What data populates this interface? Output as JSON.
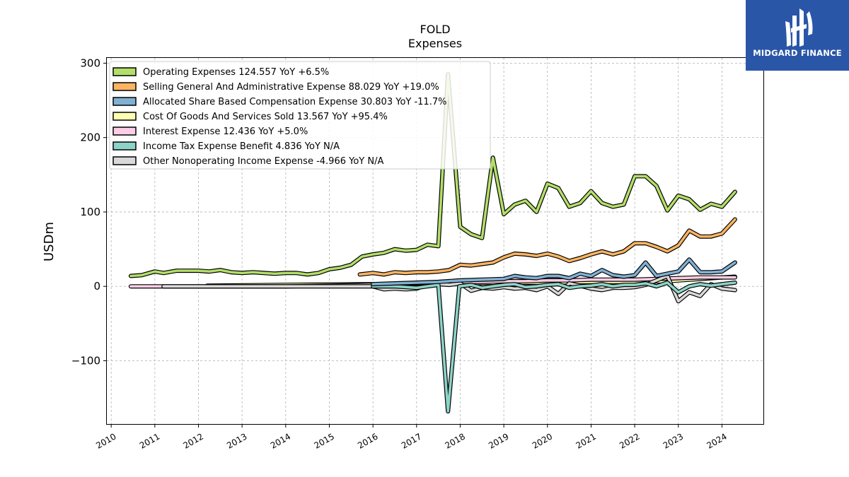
{
  "brand": {
    "name": "MIDGARD FINANCE",
    "logo_icon": "midgard-finance-logo-icon",
    "color": "#2a56a8"
  },
  "chart_data": {
    "type": "line",
    "title": "FOLD",
    "subtitle": "Expenses",
    "xlabel": "",
    "ylabel": "USDm",
    "xlim": [
      2009.9,
      2024.95
    ],
    "ylim": [
      -185,
      307
    ],
    "yticks": [
      -100,
      0,
      100,
      200,
      300
    ],
    "ytick_labels": [
      "−100",
      "0",
      "100",
      "200",
      "300"
    ],
    "xticks": [
      2010,
      2011,
      2012,
      2013,
      2014,
      2015,
      2016,
      2017,
      2018,
      2019,
      2020,
      2021,
      2022,
      2023,
      2024
    ],
    "xtick_labels": [
      "2010",
      "2011",
      "2012",
      "2013",
      "2014",
      "2015",
      "2016",
      "2017",
      "2018",
      "2019",
      "2020",
      "2021",
      "2022",
      "2023",
      "2024"
    ],
    "grid": true,
    "legend_position": "top-left",
    "series": [
      {
        "name": "Operating Expenses",
        "legend": "Operating Expenses  124.557 YoY +6.5%",
        "color": "#b3de69",
        "points": [
          [
            2010.45,
            14
          ],
          [
            2010.7,
            15
          ],
          [
            2011.0,
            20
          ],
          [
            2011.2,
            18
          ],
          [
            2011.5,
            21
          ],
          [
            2011.75,
            21
          ],
          [
            2012.0,
            21
          ],
          [
            2012.25,
            20
          ],
          [
            2012.5,
            22
          ],
          [
            2012.75,
            19
          ],
          [
            2013.0,
            18
          ],
          [
            2013.25,
            19
          ],
          [
            2013.5,
            18
          ],
          [
            2013.75,
            17
          ],
          [
            2014.0,
            18
          ],
          [
            2014.25,
            18
          ],
          [
            2014.5,
            16
          ],
          [
            2014.75,
            18
          ],
          [
            2015.0,
            23
          ],
          [
            2015.25,
            25
          ],
          [
            2015.5,
            29
          ],
          [
            2015.75,
            40
          ],
          [
            2016.0,
            43
          ],
          [
            2016.25,
            45
          ],
          [
            2016.5,
            50
          ],
          [
            2016.75,
            48
          ],
          [
            2017.0,
            49
          ],
          [
            2017.25,
            56
          ],
          [
            2017.5,
            54
          ],
          [
            2017.72,
            285
          ],
          [
            2018.0,
            80
          ],
          [
            2018.25,
            70
          ],
          [
            2018.5,
            65
          ],
          [
            2018.75,
            173
          ],
          [
            2019.0,
            97
          ],
          [
            2019.25,
            110
          ],
          [
            2019.5,
            115
          ],
          [
            2019.75,
            100
          ],
          [
            2020.0,
            138
          ],
          [
            2020.25,
            132
          ],
          [
            2020.5,
            107
          ],
          [
            2020.75,
            112
          ],
          [
            2021.0,
            128
          ],
          [
            2021.25,
            112
          ],
          [
            2021.5,
            107
          ],
          [
            2021.75,
            110
          ],
          [
            2022.0,
            148
          ],
          [
            2022.25,
            148
          ],
          [
            2022.5,
            135
          ],
          [
            2022.75,
            102
          ],
          [
            2023.0,
            122
          ],
          [
            2023.25,
            117
          ],
          [
            2023.5,
            103
          ],
          [
            2023.75,
            111
          ],
          [
            2024.0,
            107
          ],
          [
            2024.3,
            127
          ]
        ]
      },
      {
        "name": "Selling General And Administrative Expense",
        "legend": "Selling General And Administrative Expense  88.029 YoY +19.0%",
        "color": "#fdb462",
        "points": [
          [
            2015.7,
            16
          ],
          [
            2016.0,
            18
          ],
          [
            2016.25,
            16
          ],
          [
            2016.5,
            19
          ],
          [
            2016.75,
            18
          ],
          [
            2017.0,
            19
          ],
          [
            2017.25,
            19
          ],
          [
            2017.5,
            20
          ],
          [
            2017.75,
            22
          ],
          [
            2018.0,
            29
          ],
          [
            2018.25,
            28
          ],
          [
            2018.5,
            30
          ],
          [
            2018.75,
            32
          ],
          [
            2019.0,
            39
          ],
          [
            2019.25,
            44
          ],
          [
            2019.5,
            43
          ],
          [
            2019.75,
            41
          ],
          [
            2020.0,
            44
          ],
          [
            2020.25,
            40
          ],
          [
            2020.5,
            34
          ],
          [
            2020.75,
            38
          ],
          [
            2021.0,
            43
          ],
          [
            2021.25,
            47
          ],
          [
            2021.5,
            43
          ],
          [
            2021.75,
            47
          ],
          [
            2022.0,
            58
          ],
          [
            2022.25,
            58
          ],
          [
            2022.5,
            53
          ],
          [
            2022.75,
            47
          ],
          [
            2023.0,
            55
          ],
          [
            2023.25,
            75
          ],
          [
            2023.5,
            67
          ],
          [
            2023.75,
            67
          ],
          [
            2024.0,
            71
          ],
          [
            2024.3,
            90
          ]
        ]
      },
      {
        "name": "Allocated Share Based Compensation Expense",
        "legend": "Allocated Share Based Compensation Expense  30.803 YoY -11.7%",
        "color": "#80b1d3",
        "points": [
          [
            2016.0,
            3
          ],
          [
            2016.5,
            4
          ],
          [
            2017.0,
            5
          ],
          [
            2017.5,
            6
          ],
          [
            2018.0,
            8
          ],
          [
            2018.5,
            9
          ],
          [
            2019.0,
            10
          ],
          [
            2019.25,
            14
          ],
          [
            2019.5,
            12
          ],
          [
            2019.75,
            11
          ],
          [
            2020.0,
            14
          ],
          [
            2020.25,
            14
          ],
          [
            2020.5,
            11
          ],
          [
            2020.75,
            17
          ],
          [
            2021.0,
            14
          ],
          [
            2021.25,
            22
          ],
          [
            2021.5,
            15
          ],
          [
            2021.75,
            13
          ],
          [
            2022.0,
            15
          ],
          [
            2022.25,
            32
          ],
          [
            2022.5,
            14
          ],
          [
            2022.75,
            17
          ],
          [
            2023.0,
            20
          ],
          [
            2023.25,
            36
          ],
          [
            2023.5,
            19
          ],
          [
            2023.75,
            19
          ],
          [
            2024.0,
            20
          ],
          [
            2024.3,
            32
          ]
        ]
      },
      {
        "name": "Cost Of Goods And Services Sold",
        "legend": "Cost Of Goods And Services Sold  13.567 YoY +95.4%",
        "color": "#ffffb3",
        "points": [
          [
            2012.2,
            1
          ],
          [
            2014.0,
            2
          ],
          [
            2016.0,
            3
          ],
          [
            2018.0,
            4
          ],
          [
            2019.0,
            5
          ],
          [
            2020.0,
            5
          ],
          [
            2021.0,
            6
          ],
          [
            2022.0,
            6
          ],
          [
            2022.75,
            7
          ],
          [
            2023.0,
            8
          ],
          [
            2023.5,
            10
          ],
          [
            2024.0,
            12
          ],
          [
            2024.3,
            13
          ]
        ]
      },
      {
        "name": "Interest Expense",
        "legend": "Interest Expense  12.436 YoY +5.0%",
        "color": "#fccde5",
        "points": [
          [
            2010.45,
            0
          ],
          [
            2011.2,
            0
          ],
          [
            2012.0,
            0
          ],
          [
            2013.0,
            0
          ],
          [
            2014.0,
            0
          ],
          [
            2015.0,
            1
          ],
          [
            2016.0,
            2
          ],
          [
            2016.5,
            3
          ],
          [
            2017.0,
            4
          ],
          [
            2017.5,
            5
          ],
          [
            2018.0,
            6
          ],
          [
            2018.5,
            6
          ],
          [
            2019.0,
            7
          ],
          [
            2019.5,
            7
          ],
          [
            2020.0,
            8
          ],
          [
            2020.5,
            8
          ],
          [
            2021.0,
            9
          ],
          [
            2021.5,
            9
          ],
          [
            2022.0,
            9
          ],
          [
            2022.5,
            10
          ],
          [
            2023.0,
            11
          ],
          [
            2023.5,
            12
          ],
          [
            2024.0,
            12
          ],
          [
            2024.3,
            12
          ]
        ]
      },
      {
        "name": "Income Tax Expense Benefit",
        "legend": "Income Tax Expense Benefit  4.836 YoY N/A",
        "color": "#8dd3c7",
        "points": [
          [
            2016.0,
            0
          ],
          [
            2016.5,
            0
          ],
          [
            2017.0,
            -2
          ],
          [
            2017.25,
            0
          ],
          [
            2017.5,
            2
          ],
          [
            2017.72,
            -168
          ],
          [
            2017.98,
            0
          ],
          [
            2018.25,
            2
          ],
          [
            2018.5,
            -2
          ],
          [
            2018.75,
            0
          ],
          [
            2019.0,
            2
          ],
          [
            2019.25,
            3
          ],
          [
            2019.5,
            -1
          ],
          [
            2019.75,
            0
          ],
          [
            2020.0,
            2
          ],
          [
            2020.25,
            3
          ],
          [
            2020.5,
            -2
          ],
          [
            2020.75,
            0
          ],
          [
            2021.0,
            1
          ],
          [
            2021.25,
            3
          ],
          [
            2021.5,
            0
          ],
          [
            2021.75,
            2
          ],
          [
            2022.0,
            2
          ],
          [
            2022.25,
            4
          ],
          [
            2022.5,
            0
          ],
          [
            2022.75,
            5
          ],
          [
            2023.0,
            -8
          ],
          [
            2023.25,
            0
          ],
          [
            2023.5,
            3
          ],
          [
            2023.75,
            1
          ],
          [
            2024.0,
            3
          ],
          [
            2024.3,
            5
          ]
        ]
      },
      {
        "name": "Other Nonoperating Income Expense",
        "legend": "Other Nonoperating Income Expense  -4.966 YoY N/A",
        "color": "#d9d9d9",
        "points": [
          [
            2011.2,
            0
          ],
          [
            2012.0,
            0
          ],
          [
            2013.0,
            0
          ],
          [
            2014.0,
            0
          ],
          [
            2015.0,
            0
          ],
          [
            2016.0,
            0
          ],
          [
            2016.25,
            -4
          ],
          [
            2016.5,
            -3
          ],
          [
            2016.75,
            -4
          ],
          [
            2017.0,
            -3
          ],
          [
            2017.25,
            2
          ],
          [
            2017.5,
            3
          ],
          [
            2017.75,
            2
          ],
          [
            2018.0,
            4
          ],
          [
            2018.25,
            -6
          ],
          [
            2018.5,
            -2
          ],
          [
            2018.75,
            -3
          ],
          [
            2019.0,
            -1
          ],
          [
            2019.25,
            -3
          ],
          [
            2019.5,
            -2
          ],
          [
            2019.75,
            -5
          ],
          [
            2020.0,
            0
          ],
          [
            2020.25,
            -10
          ],
          [
            2020.5,
            4
          ],
          [
            2020.75,
            1
          ],
          [
            2021.0,
            -3
          ],
          [
            2021.25,
            -5
          ],
          [
            2021.5,
            -2
          ],
          [
            2021.75,
            -2
          ],
          [
            2022.0,
            -1
          ],
          [
            2022.25,
            2
          ],
          [
            2022.5,
            8
          ],
          [
            2022.75,
            14
          ],
          [
            2023.0,
            -20
          ],
          [
            2023.25,
            -8
          ],
          [
            2023.5,
            -13
          ],
          [
            2023.75,
            3
          ],
          [
            2024.0,
            -3
          ],
          [
            2024.3,
            -5
          ]
        ]
      }
    ]
  }
}
